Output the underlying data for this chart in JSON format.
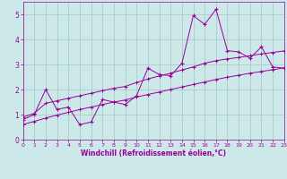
{
  "x_data": [
    0,
    1,
    2,
    3,
    4,
    5,
    6,
    7,
    8,
    9,
    10,
    11,
    12,
    13,
    14,
    15,
    16,
    17,
    18,
    19,
    20,
    21,
    22,
    23
  ],
  "y_main": [
    0.8,
    1.0,
    2.0,
    1.2,
    1.3,
    0.6,
    0.7,
    1.6,
    1.5,
    1.4,
    1.75,
    2.85,
    2.6,
    2.55,
    3.05,
    4.95,
    4.6,
    5.2,
    3.55,
    3.5,
    3.25,
    3.7,
    2.9,
    2.85
  ],
  "y_upper": [
    0.9,
    1.05,
    1.45,
    1.55,
    1.65,
    1.75,
    1.85,
    1.95,
    2.05,
    2.12,
    2.28,
    2.42,
    2.54,
    2.65,
    2.78,
    2.9,
    3.05,
    3.15,
    3.22,
    3.28,
    3.35,
    3.42,
    3.48,
    3.54
  ],
  "y_lower": [
    0.6,
    0.73,
    0.86,
    0.98,
    1.09,
    1.2,
    1.3,
    1.4,
    1.5,
    1.58,
    1.7,
    1.8,
    1.9,
    2.0,
    2.1,
    2.2,
    2.3,
    2.4,
    2.49,
    2.57,
    2.65,
    2.72,
    2.79,
    2.86
  ],
  "line_color": "#990099",
  "bg_color": "#cce8e8",
  "grid_color": "#aacccc",
  "xlabel": "Windchill (Refroidissement éolien,°C)",
  "xlim": [
    0,
    23
  ],
  "ylim": [
    0,
    5.5
  ],
  "xticks": [
    0,
    1,
    2,
    3,
    4,
    5,
    6,
    7,
    8,
    9,
    10,
    11,
    12,
    13,
    14,
    15,
    16,
    17,
    18,
    19,
    20,
    21,
    22,
    23
  ],
  "yticks": [
    0,
    1,
    2,
    3,
    4,
    5
  ]
}
